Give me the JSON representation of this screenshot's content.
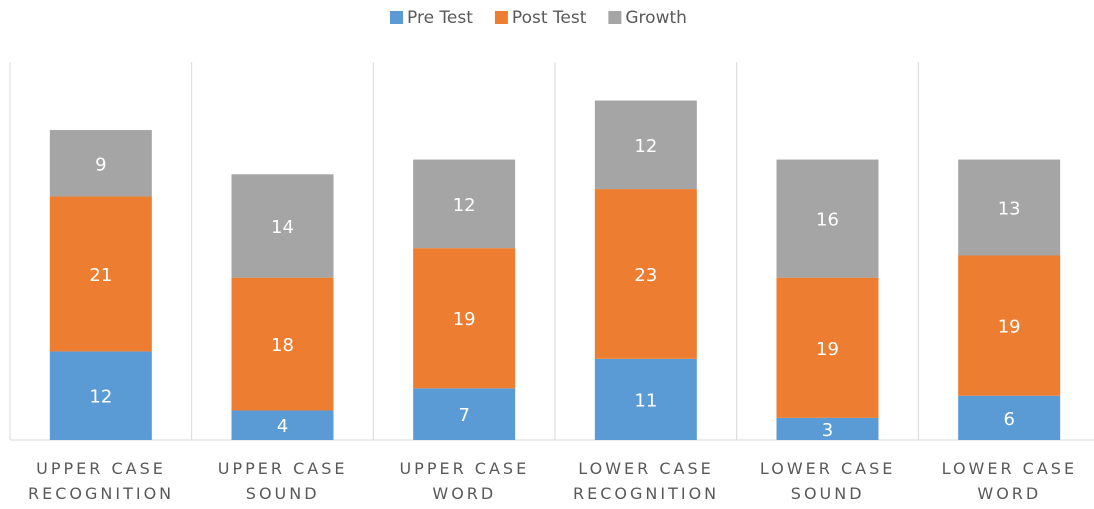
{
  "chart_data": {
    "type": "stacked_bar",
    "categories": [
      "UPPER CASE RECOGNITION",
      "UPPER CASE SOUND",
      "UPPER CASE WORD",
      "LOWER CASE RECOGNITION",
      "LOWER CASE SOUND",
      "LOWER CASE WORD"
    ],
    "series": [
      {
        "name": "Pre Test",
        "color": "#5b9bd5",
        "values": [
          12,
          4,
          7,
          11,
          3,
          6
        ]
      },
      {
        "name": "Post Test",
        "color": "#ed7d31",
        "values": [
          21,
          18,
          19,
          23,
          19,
          19
        ]
      },
      {
        "name": "Growth",
        "color": "#a5a5a5",
        "values": [
          9,
          14,
          12,
          12,
          16,
          13
        ]
      }
    ],
    "ylim": [
      0,
      50
    ],
    "legend": "top"
  }
}
